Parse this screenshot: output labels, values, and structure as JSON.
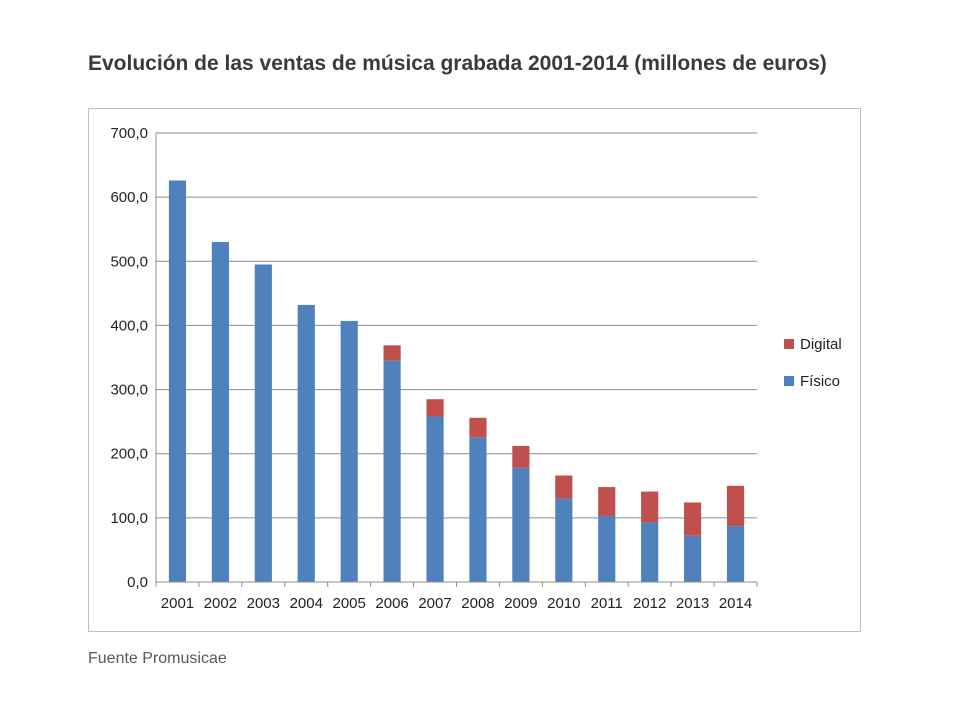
{
  "page": {
    "title": "Evolución de las ventas de música grabada 2001-2014 (millones de euros)",
    "source": "Fuente Promusicae"
  },
  "chart_data": {
    "type": "bar",
    "stacked": true,
    "title": "Evolución de las ventas de música grabada 2001-2014 (millones de euros)",
    "xlabel": "",
    "ylabel": "",
    "ylim": [
      0,
      700
    ],
    "yticks": [
      "0,0",
      "100,0",
      "200,0",
      "300,0",
      "400,0",
      "500,0",
      "600,0",
      "700,0"
    ],
    "grid": true,
    "legend_position": "right",
    "categories": [
      "2001",
      "2002",
      "2003",
      "2004",
      "2005",
      "2006",
      "2007",
      "2008",
      "2009",
      "2010",
      "2011",
      "2012",
      "2013",
      "2014"
    ],
    "series": [
      {
        "name": "Físico",
        "color": "#4f81bd",
        "values": [
          626,
          530,
          495,
          432,
          407,
          345,
          258,
          225,
          178,
          130,
          103,
          93,
          72,
          87
        ]
      },
      {
        "name": "Digital",
        "color": "#c0504d",
        "values": [
          0,
          0,
          0,
          0,
          0,
          24,
          27,
          31,
          34,
          36,
          45,
          48,
          52,
          63
        ]
      }
    ]
  }
}
